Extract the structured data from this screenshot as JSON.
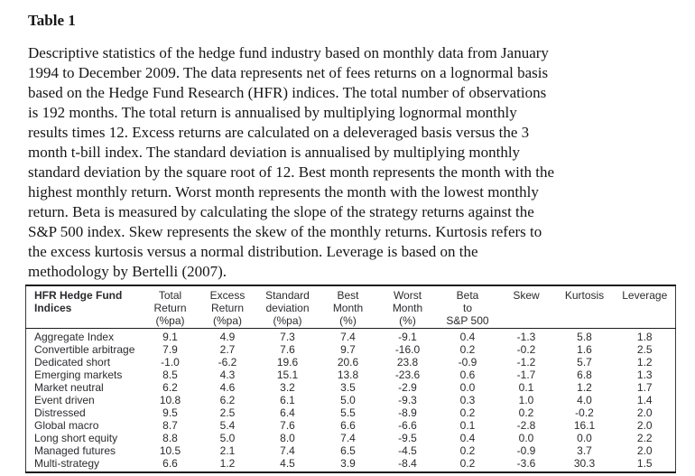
{
  "page": {
    "title": "Table 1",
    "background_color": "#ffffff",
    "text_color": "#161616",
    "table_text_color": "#2b2b2f",
    "table_border_color": "#1a1a1a"
  },
  "description": "Descriptive statistics of the hedge fund industry based on monthly data from January\n1994 to December 2009. The data represents net of fees returns on a lognormal basis\nbased on the Hedge Fund Research (HFR) indices. The total number of observations\nis 192 months. The total return is annualised by multiplying lognormal monthly\nresults times 12. Excess returns are calculated on a deleveraged basis versus the 3\nmonth t-bill index. The standard deviation is annualised by multiplying monthly\nstandard deviation by the square root of 12. Best month represents the month with the\nhighest monthly return. Worst month represents the month with the lowest monthly\nreturn. Beta is measured by calculating the slope of the strategy returns against the\nS&P 500 index. Skew represents the skew of the monthly returns. Kurtosis refers to\nthe excess kurtosis versus a normal distribution. Leverage is based on the\nmethodology by Bertelli (2007).",
  "table": {
    "columns": [
      {
        "id": "indices",
        "lines": [
          "HFR Hedge Fund",
          "Indices"
        ]
      },
      {
        "id": "total_return",
        "lines": [
          "Total",
          "Return",
          "(%pa)"
        ]
      },
      {
        "id": "excess_return",
        "lines": [
          "Excess",
          "Return",
          "(%pa)"
        ]
      },
      {
        "id": "std_deviation",
        "lines": [
          "Standard",
          "deviation",
          "(%pa)"
        ]
      },
      {
        "id": "best_month",
        "lines": [
          "Best",
          "Month",
          "(%)"
        ]
      },
      {
        "id": "worst_month",
        "lines": [
          "Worst",
          "Month",
          "(%)"
        ]
      },
      {
        "id": "beta_sp500",
        "lines": [
          "Beta",
          "to",
          "S&P 500"
        ]
      },
      {
        "id": "skew",
        "lines": [
          "Skew"
        ]
      },
      {
        "id": "kurtosis",
        "lines": [
          "Kurtosis"
        ]
      },
      {
        "id": "leverage",
        "lines": [
          "Leverage"
        ]
      }
    ],
    "rows": [
      {
        "label": "Aggregate Index",
        "values": [
          "9.1",
          "4.9",
          "7.3",
          "7.4",
          "-9.1",
          "0.4",
          "-1.3",
          "5.8",
          "1.8"
        ]
      },
      {
        "label": "Convertible arbitrage",
        "values": [
          "7.9",
          "2.7",
          "7.6",
          "9.7",
          "-16.0",
          "0.2",
          "-0.2",
          "1.6",
          "2.5"
        ]
      },
      {
        "label": "Dedicated short",
        "values": [
          "-1.0",
          "-6.2",
          "19.6",
          "20.6",
          "23.8",
          "-0.9",
          "-1.2",
          "5.7",
          "1.2"
        ]
      },
      {
        "label": "Emerging markets",
        "values": [
          "8.5",
          "4.3",
          "15.1",
          "13.8",
          "-23.6",
          "0.6",
          "-1.7",
          "6.8",
          "1.3"
        ]
      },
      {
        "label": "Market neutral",
        "values": [
          "6.2",
          "4.6",
          "3.2",
          "3.5",
          "-2.9",
          "0.0",
          "0.1",
          "1.2",
          "1.7"
        ]
      },
      {
        "label": "Event driven",
        "values": [
          "10.8",
          "6.2",
          "6.1",
          "5.0",
          "-9.3",
          "0.3",
          "1.0",
          "4.0",
          "1.4"
        ]
      },
      {
        "label": "Distressed",
        "values": [
          "9.5",
          "2.5",
          "6.4",
          "5.5",
          "-8.9",
          "0.2",
          "0.2",
          "-0.2",
          "2.0"
        ]
      },
      {
        "label": "Global macro",
        "values": [
          "8.7",
          "5.4",
          "7.6",
          "6.6",
          "-6.6",
          "0.1",
          "-2.8",
          "16.1",
          "2.0"
        ]
      },
      {
        "label": "Long short equity",
        "values": [
          "8.8",
          "5.0",
          "8.0",
          "7.4",
          "-9.5",
          "0.4",
          "0.0",
          "0.0",
          "2.2"
        ]
      },
      {
        "label": "Managed futures",
        "values": [
          "10.5",
          "2.1",
          "7.4",
          "6.5",
          "-4.5",
          "0.2",
          "-0.9",
          "3.7",
          "2.0"
        ]
      },
      {
        "label": "Multi-strategy",
        "values": [
          "6.6",
          "1.2",
          "4.5",
          "3.9",
          "-8.4",
          "0.2",
          "-3.6",
          "30.3",
          "1.5"
        ]
      }
    ]
  }
}
